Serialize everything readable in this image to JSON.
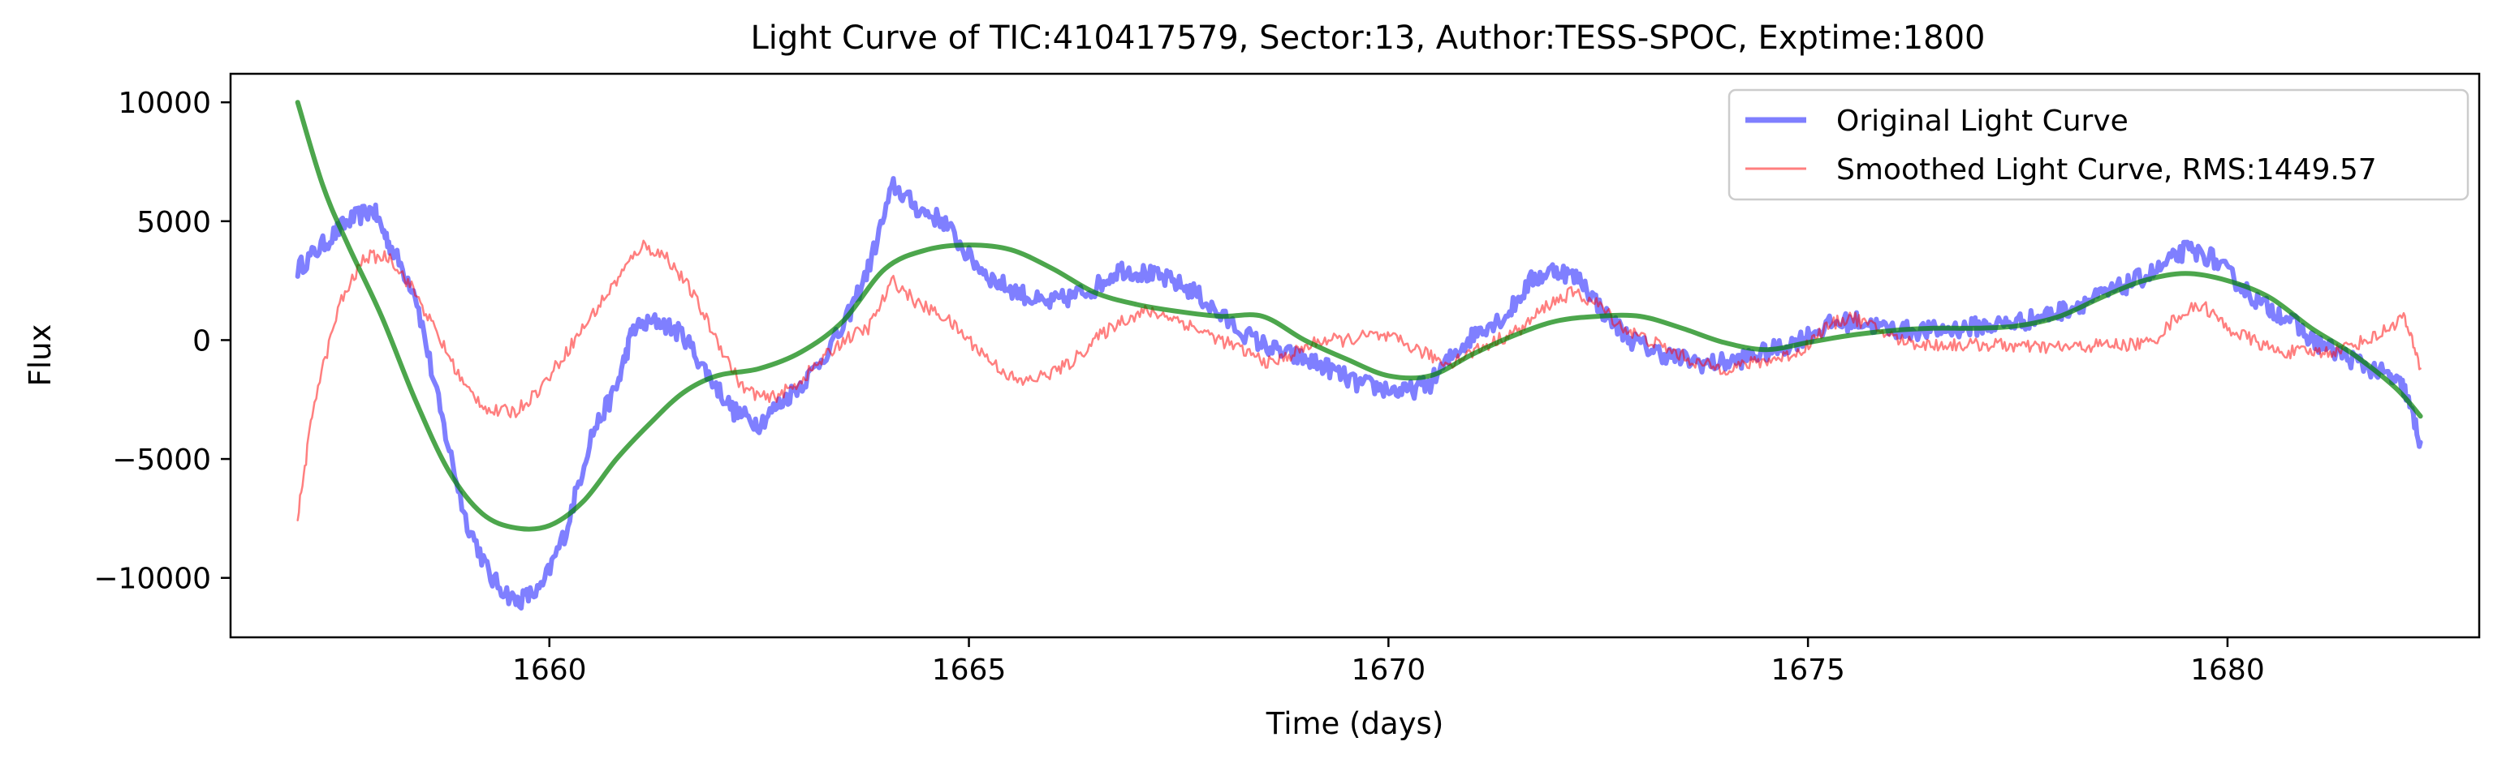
{
  "chart_data": {
    "type": "line",
    "title": "Light Curve of TIC:410417579, Sector:13, Author:TESS-SPOC, Exptime:1800",
    "xlabel": "Time (days)",
    "ylabel": "Flux",
    "xlim": [
      1656.2,
      1683.0
    ],
    "ylim": [
      -12500,
      11200
    ],
    "xticks": [
      1660,
      1665,
      1670,
      1675,
      1680
    ],
    "xtick_labels": [
      "1660",
      "1665",
      "1670",
      "1675",
      "1680"
    ],
    "yticks": [
      -10000,
      -5000,
      0,
      5000,
      10000
    ],
    "ytick_labels": [
      "−10000",
      "−5000",
      "0",
      "5000",
      "10000"
    ],
    "grid": false,
    "legend_position": "top-right",
    "series": [
      {
        "name": "Original Light Curve",
        "color": "#0000ff",
        "opacity": 0.5,
        "noise": 400,
        "x": [
          1657.0,
          1657.3,
          1657.6,
          1657.9,
          1658.1,
          1658.4,
          1658.7,
          1659.0,
          1659.3,
          1659.6,
          1659.9,
          1660.2,
          1660.5,
          1660.8,
          1661.0,
          1661.3,
          1661.6,
          1661.9,
          1662.2,
          1662.5,
          1662.8,
          1663.1,
          1663.5,
          1663.8,
          1664.1,
          1664.4,
          1664.7,
          1665.0,
          1665.3,
          1665.6,
          1665.9,
          1666.2,
          1666.5,
          1666.8,
          1667.1,
          1667.4,
          1667.7,
          1668.0,
          1668.4,
          1668.7,
          1669.0,
          1669.3,
          1669.6,
          1669.9,
          1670.2,
          1670.5,
          1670.8,
          1671.1,
          1671.4,
          1671.7,
          1672.0,
          1672.3,
          1672.6,
          1672.9,
          1673.2,
          1673.5,
          1673.8,
          1674.1,
          1674.4,
          1674.7,
          1675.0,
          1675.3,
          1675.6,
          1675.9,
          1676.2,
          1676.5,
          1676.8,
          1677.1,
          1677.4,
          1677.7,
          1678.0,
          1678.3,
          1678.6,
          1678.9,
          1679.2,
          1679.5,
          1679.8,
          1680.1,
          1680.4,
          1680.7,
          1681.0,
          1681.3,
          1681.6,
          1681.9,
          1682.1,
          1682.3
        ],
        "y": [
          3000,
          4000,
          5000,
          5500,
          4000,
          2000,
          -3000,
          -7500,
          -10000,
          -11000,
          -10500,
          -8000,
          -4000,
          -2000,
          500,
          800,
          200,
          -1500,
          -3000,
          -3500,
          -2500,
          -1500,
          500,
          3000,
          6500,
          5500,
          5000,
          3500,
          2500,
          2000,
          1500,
          1800,
          2200,
          3000,
          2800,
          2500,
          2000,
          1000,
          0,
          -500,
          -800,
          -1200,
          -1800,
          -2000,
          -2200,
          -1800,
          -500,
          500,
          1000,
          2500,
          3000,
          2500,
          1000,
          0,
          -500,
          -800,
          -1000,
          -900,
          -600,
          -300,
          200,
          700,
          800,
          500,
          400,
          400,
          500,
          600,
          700,
          900,
          1200,
          1600,
          2000,
          2500,
          3000,
          3800,
          3500,
          2500,
          1500,
          1000,
          0,
          -500,
          -1000,
          -1500,
          -2000,
          -4300
        ]
      },
      {
        "name": "Smoothed Light Curve, RMS:1449.57",
        "color": "#ff0000",
        "opacity": 0.5,
        "noise": 280,
        "x": [
          1657.0,
          1657.2,
          1657.5,
          1657.8,
          1658.1,
          1658.4,
          1658.7,
          1659.0,
          1659.3,
          1659.6,
          1659.9,
          1660.2,
          1660.5,
          1660.8,
          1661.1,
          1661.4,
          1661.7,
          1662.0,
          1662.3,
          1662.6,
          1662.9,
          1663.2,
          1663.5,
          1663.8,
          1664.1,
          1664.4,
          1664.7,
          1665.0,
          1665.3,
          1665.6,
          1665.9,
          1666.2,
          1666.5,
          1666.8,
          1667.1,
          1667.4,
          1667.7,
          1668.0,
          1668.3,
          1668.6,
          1668.9,
          1669.2,
          1669.5,
          1669.8,
          1670.1,
          1670.4,
          1670.7,
          1671.0,
          1671.3,
          1671.6,
          1671.9,
          1672.2,
          1672.5,
          1672.8,
          1673.1,
          1673.4,
          1673.7,
          1674.0,
          1674.3,
          1674.6,
          1674.9,
          1675.2,
          1675.5,
          1675.8,
          1676.1,
          1676.4,
          1676.7,
          1677.0,
          1677.3,
          1677.6,
          1677.9,
          1678.2,
          1678.5,
          1678.8,
          1679.1,
          1679.4,
          1679.7,
          1680.0,
          1680.3,
          1680.6,
          1680.9,
          1681.2,
          1681.5,
          1681.8,
          1682.1,
          1682.3
        ],
        "y": [
          -7500,
          -2500,
          1500,
          3500,
          3500,
          2000,
          0,
          -2000,
          -3000,
          -3000,
          -2000,
          -500,
          1000,
          2500,
          4000,
          3500,
          2000,
          0,
          -2000,
          -2500,
          -2000,
          -1000,
          0,
          500,
          2500,
          1500,
          1000,
          0,
          -1000,
          -1800,
          -1500,
          -1000,
          0,
          800,
          1200,
          1000,
          500,
          0,
          -500,
          -1000,
          -500,
          0,
          0,
          200,
          0,
          -500,
          -1000,
          -500,
          0,
          500,
          1500,
          2000,
          1500,
          500,
          0,
          -500,
          -1000,
          -1200,
          -1000,
          -800,
          -500,
          500,
          1000,
          500,
          0,
          -200,
          -200,
          -200,
          -200,
          -300,
          -300,
          -300,
          -200,
          -200,
          -100,
          1000,
          1500,
          500,
          0,
          -500,
          -500,
          -500,
          -200,
          200,
          1000,
          -1200
        ]
      },
      {
        "name": "",
        "color": "#008000",
        "opacity": 0.7,
        "x": [
          1657.0,
          1657.3,
          1657.6,
          1658.0,
          1658.4,
          1658.8,
          1659.2,
          1659.6,
          1660.0,
          1660.4,
          1660.8,
          1661.2,
          1661.6,
          1662.0,
          1662.5,
          1663.0,
          1663.5,
          1664.0,
          1664.5,
          1665.0,
          1665.5,
          1666.0,
          1666.5,
          1667.0,
          1667.5,
          1668.0,
          1668.5,
          1669.0,
          1669.5,
          1670.0,
          1670.5,
          1671.0,
          1671.5,
          1672.0,
          1672.5,
          1673.0,
          1673.5,
          1674.0,
          1674.5,
          1675.0,
          1675.5,
          1676.0,
          1676.5,
          1677.0,
          1677.5,
          1678.0,
          1678.5,
          1679.0,
          1679.5,
          1680.0,
          1680.5,
          1681.0,
          1681.5,
          1682.0,
          1682.3
        ],
        "y": [
          10000,
          6500,
          4000,
          1000,
          -2500,
          -5500,
          -7300,
          -7900,
          -7800,
          -6800,
          -5000,
          -3500,
          -2200,
          -1500,
          -1200,
          -500,
          800,
          3000,
          3800,
          4000,
          3800,
          3000,
          2000,
          1500,
          1200,
          1000,
          1000,
          0,
          -800,
          -1500,
          -1500,
          -600,
          200,
          800,
          1000,
          1000,
          500,
          -100,
          -400,
          -100,
          200,
          400,
          500,
          500,
          600,
          1000,
          1800,
          2500,
          2800,
          2500,
          1800,
          500,
          -600,
          -2000,
          -3200
        ]
      }
    ]
  }
}
